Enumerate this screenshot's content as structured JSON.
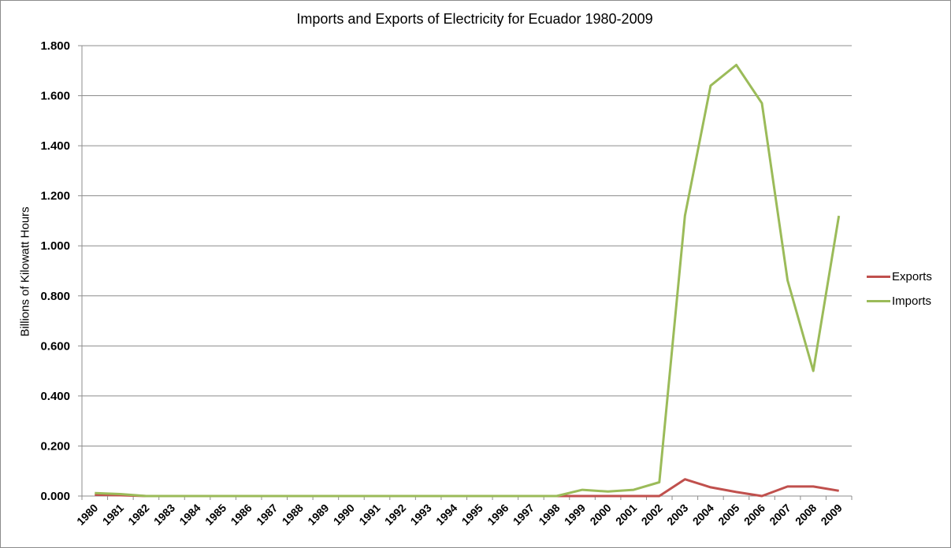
{
  "chart_data": {
    "type": "line",
    "title": "Imports and Exports of Electricity  for Ecuador 1980-2009",
    "xlabel": "",
    "ylabel": "Billions of Kilowatt Hours",
    "ylim": [
      0,
      1.8
    ],
    "yticks": [
      "0.000",
      "0.200",
      "0.400",
      "0.600",
      "0.800",
      "1.000",
      "1.200",
      "1.400",
      "1.600",
      "1.800"
    ],
    "grid": true,
    "legend": "right",
    "categories": [
      "1980",
      "1981",
      "1982",
      "1983",
      "1984",
      "1985",
      "1986",
      "1987",
      "1988",
      "1989",
      "1990",
      "1991",
      "1992",
      "1993",
      "1994",
      "1995",
      "1996",
      "1997",
      "1998",
      "1999",
      "2000",
      "2001",
      "2002",
      "2003",
      "2004",
      "2005",
      "2006",
      "2007",
      "2008",
      "2009"
    ],
    "series": [
      {
        "name": "Exports",
        "color": "#c0504d",
        "values": [
          0.005,
          0.003,
          0,
          0,
          0,
          0,
          0,
          0,
          0,
          0,
          0,
          0,
          0,
          0,
          0,
          0,
          0,
          0,
          0,
          0,
          0,
          0,
          0,
          0.067,
          0.035,
          0.016,
          0,
          0.038,
          0.038,
          0.021
        ]
      },
      {
        "name": "Imports",
        "color": "#9bbb59",
        "values": [
          0.012,
          0.008,
          0,
          0,
          0,
          0,
          0,
          0,
          0,
          0,
          0,
          0,
          0,
          0,
          0,
          0,
          0,
          0,
          0,
          0.025,
          0.018,
          0.025,
          0.055,
          1.12,
          1.64,
          1.723,
          1.57,
          0.862,
          0.5,
          1.12
        ]
      }
    ]
  }
}
